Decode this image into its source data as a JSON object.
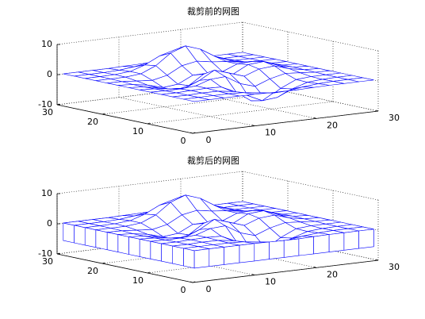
{
  "chart_data": [
    {
      "type": "mesh",
      "title": "裁剪前的网图",
      "color": "#0000ff",
      "grid": true,
      "x": [
        1,
        3.4,
        5.8,
        8.3,
        10.7,
        13.1,
        15.5,
        17.9,
        20.3,
        22.8,
        25.2,
        27.6,
        30
      ],
      "y": [
        1,
        3.4,
        5.8,
        8.3,
        10.7,
        13.1,
        15.5,
        17.9,
        20.3,
        22.8,
        25.2,
        27.6,
        30
      ],
      "z": [
        [
          0,
          0,
          0,
          0,
          0,
          -0.1,
          -0.2,
          -0.2,
          -0.1,
          0,
          0,
          0,
          0
        ],
        [
          0,
          0,
          0,
          0,
          -0.2,
          -0.9,
          -1.5,
          -1.4,
          -0.7,
          -0.2,
          0,
          0,
          0
        ],
        [
          0,
          0,
          0.1,
          0.1,
          -0.6,
          -2.5,
          -4.8,
          -4.3,
          -2.1,
          -0.5,
          -0.1,
          0,
          0
        ],
        [
          0,
          0,
          0.1,
          0.3,
          0.1,
          -2.2,
          -5.6,
          -5.8,
          -2.7,
          -0.4,
          0,
          0,
          0
        ],
        [
          0,
          -0.1,
          -0.1,
          0.3,
          1.9,
          2.2,
          -0.7,
          -2.2,
          -0.3,
          0.9,
          0.5,
          0.1,
          0
        ],
        [
          0,
          -0.2,
          -0.8,
          -1.2,
          0.8,
          3.6,
          2,
          0.4,
          2.2,
          2.6,
          1.1,
          0.2,
          0
        ],
        [
          0,
          -0.3,
          -1.3,
          -2.8,
          -1.7,
          1.5,
          1,
          0.4,
          2.9,
          3.3,
          1.4,
          0.3,
          0
        ],
        [
          0,
          -0.3,
          -1.1,
          -2.5,
          -2,
          0.4,
          0.5,
          0.4,
          2.4,
          2.6,
          1.1,
          0.2,
          0
        ],
        [
          0,
          -0.1,
          -0.5,
          -0.9,
          0.2,
          2.8,
          3.7,
          2.9,
          2.4,
          1.6,
          0.6,
          0.1,
          0
        ],
        [
          0,
          0,
          0,
          0.5,
          2.6,
          6.2,
          8,
          6.3,
          3.3,
          1.2,
          0.3,
          0.1,
          0
        ],
        [
          0,
          0,
          0.1,
          0.5,
          2.1,
          4.5,
          5.9,
          4.5,
          2.2,
          0.7,
          0.1,
          0,
          0
        ],
        [
          0,
          0,
          0,
          0.2,
          0.7,
          1.5,
          1.9,
          1.5,
          0.7,
          0.2,
          0,
          0,
          0
        ],
        [
          0,
          0,
          0,
          0,
          0.1,
          0.2,
          0.3,
          0.2,
          0.1,
          0,
          0,
          0,
          0
        ]
      ],
      "xlim": [
        0,
        30
      ],
      "ylim": [
        0,
        30
      ],
      "zlim": [
        -10,
        10
      ],
      "xticks": [
        0,
        10,
        20,
        30
      ],
      "yticks": [
        0,
        10,
        20,
        30
      ],
      "zticks": [
        -10,
        0,
        10
      ]
    },
    {
      "type": "meshz",
      "title": "裁剪后的网图",
      "color": "#0000ff",
      "grid": true,
      "x": [
        1,
        3.4,
        5.8,
        8.3,
        10.7,
        13.1,
        15.5,
        17.9,
        20.3,
        22.8,
        25.2,
        27.6,
        30
      ],
      "y": [
        1,
        3.4,
        5.8,
        8.3,
        10.7,
        13.1,
        15.5,
        17.9,
        20.3,
        22.8,
        25.2,
        27.6,
        30
      ],
      "z": [
        [
          0,
          0,
          0,
          0,
          0,
          -0.1,
          -0.2,
          -0.2,
          -0.1,
          0,
          0,
          0,
          0
        ],
        [
          0,
          0,
          0,
          0,
          -0.2,
          -0.9,
          -1.5,
          -1.4,
          -0.7,
          -0.2,
          0,
          0,
          0
        ],
        [
          0,
          0,
          0.1,
          0.1,
          -0.6,
          -2.5,
          -4.8,
          -4.3,
          -2.1,
          -0.5,
          -0.1,
          0,
          0
        ],
        [
          0,
          0,
          0.1,
          0.3,
          0.1,
          -2.2,
          -5.6,
          -5.8,
          -2.7,
          -0.4,
          0,
          0,
          0
        ],
        [
          0,
          -0.1,
          -0.1,
          0.3,
          1.9,
          2.2,
          -0.7,
          -2.2,
          -0.3,
          0.9,
          0.5,
          0.1,
          0
        ],
        [
          0,
          -0.2,
          -0.8,
          -1.2,
          0.8,
          3.6,
          2,
          0.4,
          2.2,
          2.6,
          1.1,
          0.2,
          0
        ],
        [
          0,
          -0.3,
          -1.3,
          -2.8,
          -1.7,
          1.5,
          1,
          0.4,
          2.9,
          3.3,
          1.4,
          0.3,
          0
        ],
        [
          0,
          -0.3,
          -1.1,
          -2.5,
          -2,
          0.4,
          0.5,
          0.4,
          2.4,
          2.6,
          1.1,
          0.2,
          0
        ],
        [
          0,
          -0.1,
          -0.5,
          -0.9,
          0.2,
          2.8,
          3.7,
          2.9,
          2.4,
          1.6,
          0.6,
          0.1,
          0
        ],
        [
          0,
          0,
          0,
          0.5,
          2.6,
          6.2,
          8,
          6.3,
          3.3,
          1.2,
          0.3,
          0.1,
          0
        ],
        [
          0,
          0,
          0.1,
          0.5,
          2.1,
          4.5,
          5.9,
          4.5,
          2.2,
          0.7,
          0.1,
          0,
          0
        ],
        [
          0,
          0,
          0,
          0.2,
          0.7,
          1.5,
          1.9,
          1.5,
          0.7,
          0.2,
          0,
          0,
          0
        ],
        [
          0,
          0,
          0,
          0,
          0.1,
          0.2,
          0.3,
          0.2,
          0.1,
          0,
          0,
          0,
          0
        ]
      ],
      "xlim": [
        0,
        30
      ],
      "ylim": [
        0,
        30
      ],
      "zlim": [
        -10,
        10
      ],
      "xticks": [
        0,
        10,
        20,
        30
      ],
      "yticks": [
        0,
        10,
        20,
        30
      ],
      "zticks": [
        -10,
        0,
        10
      ]
    }
  ]
}
